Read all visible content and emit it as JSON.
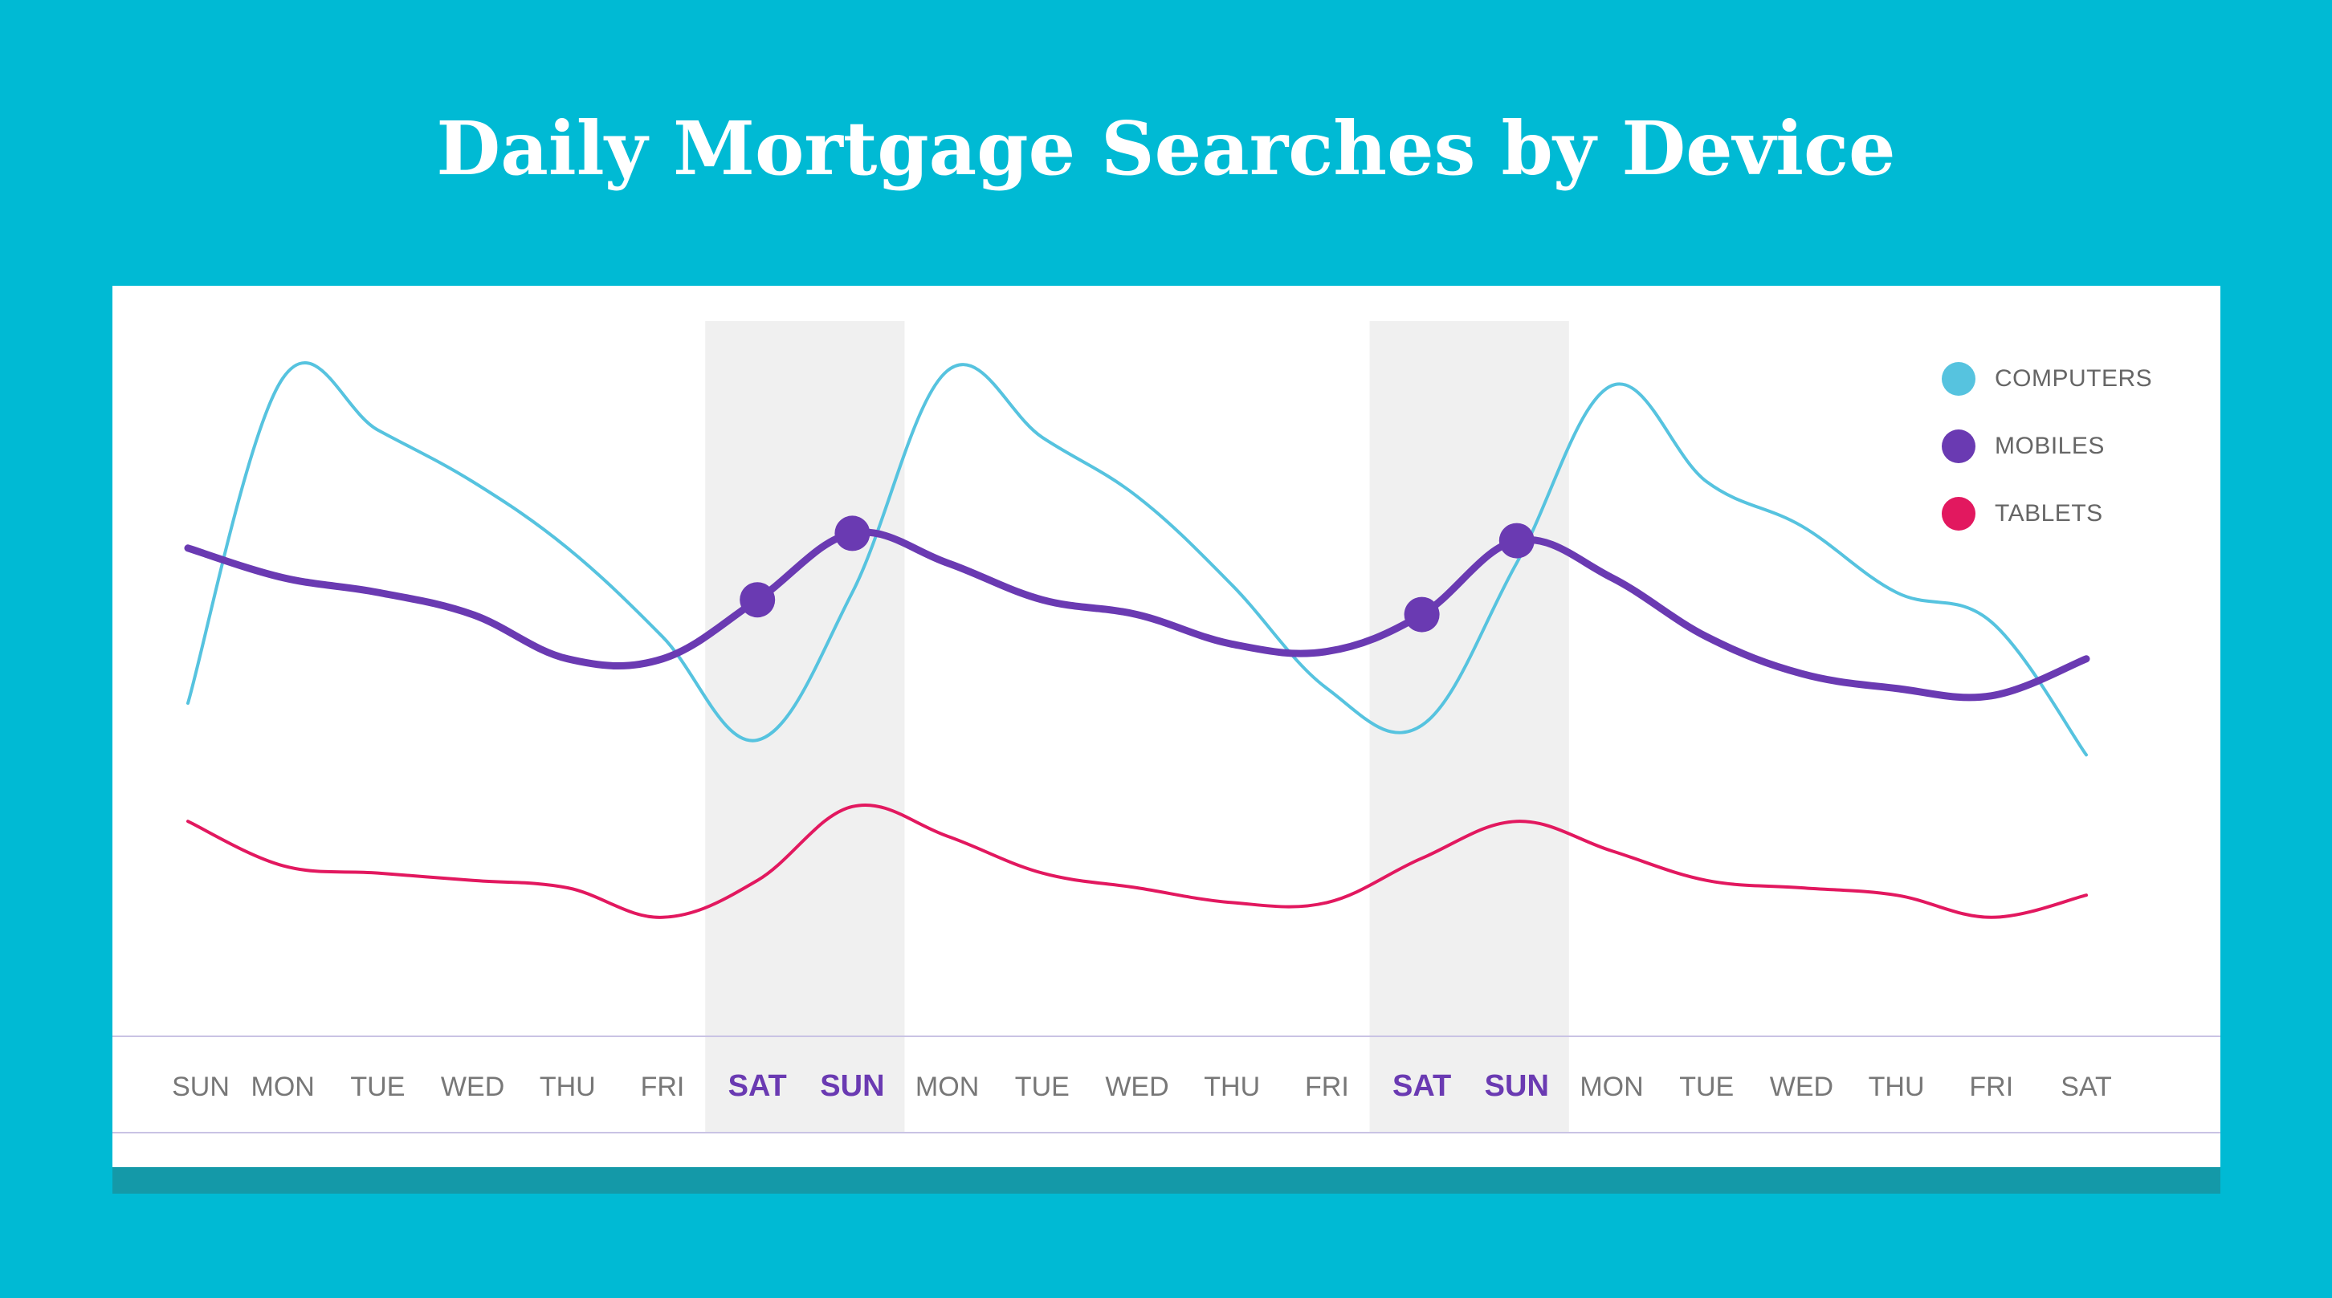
{
  "chart_data": {
    "type": "line",
    "title": "Daily Mortgage Searches by Device",
    "categories": [
      "SUN",
      "MON",
      "TUE",
      "WED",
      "THU",
      "FRI",
      "SAT",
      "SUN",
      "MON",
      "TUE",
      "WED",
      "THU",
      "FRI",
      "SAT",
      "SUN",
      "MON",
      "TUE",
      "WED",
      "THU",
      "FRI",
      "SAT"
    ],
    "weekend_highlight_indices": [
      [
        6,
        7
      ],
      [
        13,
        14
      ]
    ],
    "highlight_label_color": "#6A3AB2",
    "ylim": [
      0,
      100
    ],
    "grid": false,
    "legend_position": "top-right",
    "series": [
      {
        "name": "COMPUTERS",
        "color": "#56C3DF",
        "values": [
          45,
          89,
          82,
          75,
          66,
          54,
          40,
          60,
          90,
          81,
          73,
          61,
          47,
          42,
          64,
          88,
          75,
          69,
          60,
          56,
          38
        ]
      },
      {
        "name": "MOBILES",
        "color": "#6A3AB2",
        "values": [
          66,
          62,
          60,
          57,
          51,
          51,
          59,
          68,
          64,
          59,
          57,
          53,
          52,
          57,
          67,
          62,
          54,
          49,
          47,
          46,
          51
        ]
      },
      {
        "name": "TABLETS",
        "color": "#E2185F",
        "values": [
          29,
          23,
          22,
          21,
          20,
          16,
          21,
          31,
          27,
          22,
          20,
          18,
          18,
          24,
          29,
          25,
          21,
          20,
          19,
          16,
          19
        ]
      }
    ],
    "markers": [
      {
        "series": "MOBILES",
        "index": 6
      },
      {
        "series": "MOBILES",
        "index": 7
      },
      {
        "series": "MOBILES",
        "index": 13
      },
      {
        "series": "MOBILES",
        "index": 14
      }
    ]
  }
}
